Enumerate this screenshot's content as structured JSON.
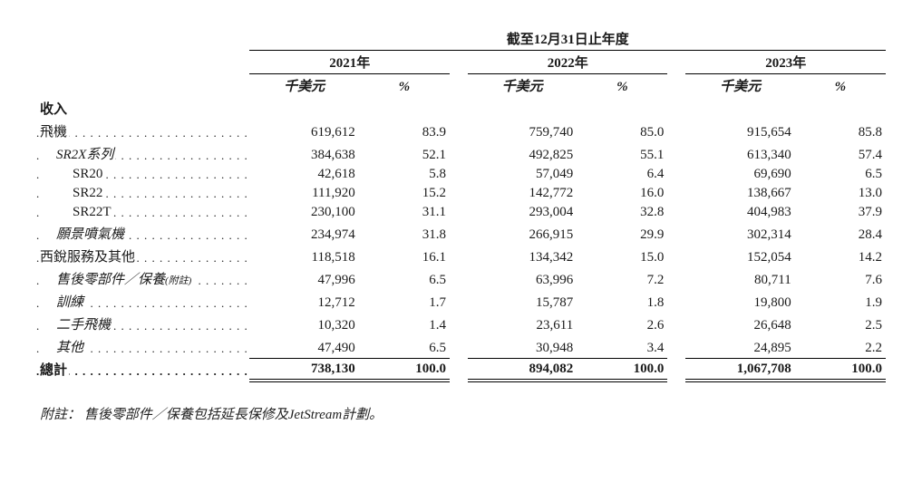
{
  "header": {
    "span": "截至12月31日止年度",
    "years": [
      "2021年",
      "2022年",
      "2023年"
    ],
    "sub_amount": "千美元",
    "sub_pct": "%"
  },
  "section_title": "收入",
  "rows": [
    {
      "label": "飛機",
      "indent": 0,
      "v": [
        "619,612",
        "83.9",
        "759,740",
        "85.0",
        "915,654",
        "85.8"
      ]
    },
    {
      "label": "SR2X系列",
      "indent": 1,
      "italic": true,
      "v": [
        "384,638",
        "52.1",
        "492,825",
        "55.1",
        "613,340",
        "57.4"
      ]
    },
    {
      "label": "SR20",
      "indent": 2,
      "v": [
        "42,618",
        "5.8",
        "57,049",
        "6.4",
        "69,690",
        "6.5"
      ]
    },
    {
      "label": "SR22",
      "indent": 2,
      "v": [
        "111,920",
        "15.2",
        "142,772",
        "16.0",
        "138,667",
        "13.0"
      ]
    },
    {
      "label": "SR22T",
      "indent": 2,
      "v": [
        "230,100",
        "31.1",
        "293,004",
        "32.8",
        "404,983",
        "37.9"
      ]
    },
    {
      "label": "願景噴氣機",
      "indent": 1,
      "italic": true,
      "v": [
        "234,974",
        "31.8",
        "266,915",
        "29.9",
        "302,314",
        "28.4"
      ]
    },
    {
      "label": "西銳服務及其他",
      "indent": 0,
      "v": [
        "118,518",
        "16.1",
        "134,342",
        "15.0",
        "152,054",
        "14.2"
      ]
    },
    {
      "label": "售後零部件／保養",
      "note": "(附註)",
      "indent": 1,
      "italic": true,
      "v": [
        "47,996",
        "6.5",
        "63,996",
        "7.2",
        "80,711",
        "7.6"
      ]
    },
    {
      "label": "訓練",
      "indent": 1,
      "italic": true,
      "v": [
        "12,712",
        "1.7",
        "15,787",
        "1.8",
        "19,800",
        "1.9"
      ]
    },
    {
      "label": "二手飛機",
      "indent": 1,
      "italic": true,
      "v": [
        "10,320",
        "1.4",
        "23,611",
        "2.6",
        "26,648",
        "2.5"
      ]
    },
    {
      "label": "其他",
      "indent": 1,
      "italic": true,
      "v": [
        "47,490",
        "6.5",
        "30,948",
        "3.4",
        "24,895",
        "2.2"
      ]
    }
  ],
  "total": {
    "label": "總計",
    "v": [
      "738,130",
      "100.0",
      "894,082",
      "100.0",
      "1,067,708",
      "100.0"
    ]
  },
  "footnote": "附註： 售後零部件／保養包括延長保修及JetStream計劃。",
  "style": {
    "font_family": "Times New Roman / SimSun",
    "base_font_size_pt": 11,
    "text_color": "#1a1a1a",
    "background_color": "#ffffff",
    "rule_color": "#000000"
  }
}
